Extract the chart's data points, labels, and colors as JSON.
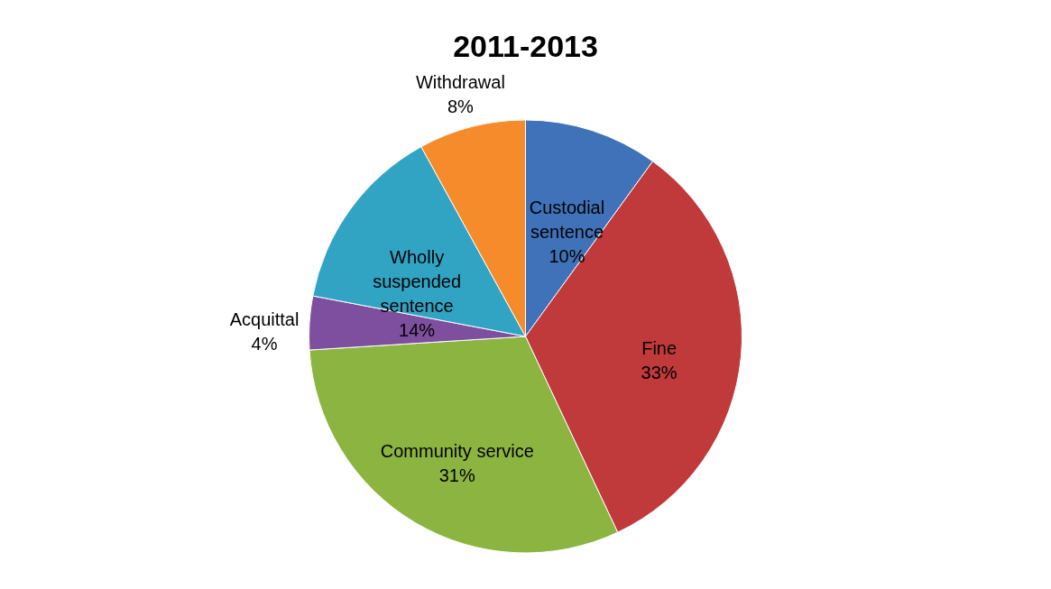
{
  "chart_data": {
    "type": "pie",
    "title": "2011-2013",
    "categories": [
      "Custodial sentence",
      "Fine",
      "Community service",
      "Acquittal",
      "Wholly suspended sentence",
      "Withdrawal"
    ],
    "values": [
      10,
      33,
      31,
      4,
      14,
      8
    ],
    "value_labels": [
      "10%",
      "33%",
      "31%",
      "4%",
      "14%",
      "8%"
    ],
    "colors": [
      "#3f72b8",
      "#c0393b",
      "#8cb440",
      "#7d4f9e",
      "#31a3c3",
      "#f58b2a"
    ],
    "legend": false
  }
}
